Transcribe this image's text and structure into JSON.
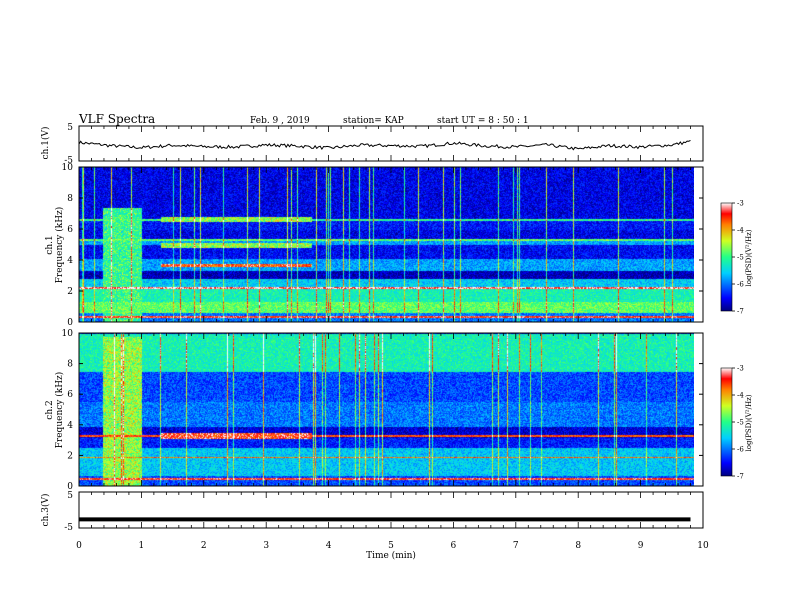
{
  "header": {
    "title": "VLF Spectra",
    "date": "Feb. 9  , 2019",
    "station": "station= KAP",
    "start": "start  UT =   8  : 50 : 1"
  },
  "chart_data": [
    {
      "type": "line",
      "ylabel": "ch.1(V)",
      "ylim": [
        -5,
        5
      ],
      "yticks": [
        "5",
        "-5"
      ],
      "xlim": [
        0,
        10
      ],
      "series_color": "#000000",
      "x_sample_min": [
        0,
        0.5,
        1,
        1.5,
        2,
        2.5,
        3,
        3.5,
        4,
        4.5,
        5,
        5.5,
        6,
        6.5,
        7,
        7.5,
        8,
        8.5,
        9,
        9.5,
        9.8
      ],
      "y_volts": [
        0.3,
        -0.6,
        -1.2,
        -0.5,
        -0.9,
        -1.0,
        -0.4,
        -0.7,
        -1.3,
        -0.5,
        -0.6,
        -0.8,
        0.1,
        -0.7,
        -1.0,
        -0.4,
        -1.6,
        -0.6,
        -1.0,
        -0.4,
        0.6
      ]
    },
    {
      "type": "heatmap",
      "ylabel": "ch.1\nFrequency (kHz)",
      "ylim": [
        0,
        10
      ],
      "yticks": [
        "0",
        "2",
        "4",
        "6",
        "8",
        "10"
      ],
      "xlim": [
        0,
        10
      ],
      "colorbar": {
        "label": "log(PSD)(V²/Hz)",
        "range": [
          -7,
          -3
        ],
        "ticks": [
          "-3",
          "-4",
          "-5",
          "-6",
          "-7"
        ]
      },
      "bands_khz": [
        {
          "f0": 0.0,
          "f1": 0.6,
          "level": 0.25
        },
        {
          "f0": 0.6,
          "f1": 1.3,
          "level": 0.55
        },
        {
          "f0": 1.3,
          "f1": 2.2,
          "level": 0.45
        },
        {
          "f0": 2.2,
          "f1": 2.3,
          "level": 0.85
        },
        {
          "f0": 2.3,
          "f1": 2.8,
          "level": 0.35
        },
        {
          "f0": 2.8,
          "f1": 3.3,
          "level": 0.05
        },
        {
          "f0": 3.3,
          "f1": 4.1,
          "level": 0.3
        },
        {
          "f0": 4.1,
          "f1": 5.0,
          "level": 0.12
        },
        {
          "f0": 5.0,
          "f1": 5.4,
          "level": 0.3
        },
        {
          "f0": 5.4,
          "f1": 6.0,
          "level": 0.1
        },
        {
          "f0": 6.0,
          "f1": 6.7,
          "level": 0.14
        },
        {
          "f0": 6.7,
          "f1": 10.0,
          "level": 0.1
        }
      ],
      "lines_khz": [
        {
          "f": 0.35,
          "level": 0.9
        },
        {
          "f": 2.2,
          "level": 0.95
        },
        {
          "f": 5.3,
          "level": 0.55
        },
        {
          "f": 6.6,
          "level": 0.5
        }
      ],
      "bursts_min": [
        {
          "t0": 0.38,
          "t1": 1.0,
          "f0": 0.0,
          "f1": 7.4,
          "level": 0.5
        },
        {
          "t0": 1.3,
          "t1": 3.72,
          "f0": 3.6,
          "f1": 3.8,
          "level": 0.85
        },
        {
          "t0": 1.3,
          "t1": 3.72,
          "f0": 4.8,
          "f1": 5.1,
          "level": 0.6
        },
        {
          "t0": 1.3,
          "t1": 3.72,
          "f0": 6.5,
          "f1": 6.8,
          "level": 0.6
        }
      ]
    },
    {
      "type": "heatmap",
      "ylabel": "ch.2\nFrequency (kHz)",
      "ylim": [
        0,
        10
      ],
      "yticks": [
        "0",
        "2",
        "4",
        "6",
        "8",
        "10"
      ],
      "xlim": [
        0,
        10
      ],
      "colorbar": {
        "label": "log(PSD)(V²/Hz)",
        "range": [
          -7,
          -3
        ],
        "ticks": [
          "-3",
          "-4",
          "-5",
          "-6",
          "-7"
        ]
      },
      "bands_khz": [
        {
          "f0": 0.0,
          "f1": 0.7,
          "level": 0.2
        },
        {
          "f0": 0.7,
          "f1": 2.5,
          "level": 0.35
        },
        {
          "f0": 2.5,
          "f1": 3.2,
          "level": 0.15
        },
        {
          "f0": 3.2,
          "f1": 3.9,
          "level": 0.08
        },
        {
          "f0": 3.9,
          "f1": 5.5,
          "level": 0.25
        },
        {
          "f0": 5.5,
          "f1": 7.5,
          "level": 0.2
        },
        {
          "f0": 7.5,
          "f1": 10.0,
          "level": 0.45
        }
      ],
      "lines_khz": [
        {
          "f": 0.5,
          "level": 0.9
        },
        {
          "f": 1.9,
          "level": 0.8
        },
        {
          "f": 3.3,
          "level": 0.85
        }
      ],
      "bursts_min": [
        {
          "t0": 0.38,
          "t1": 1.0,
          "f0": 0.0,
          "f1": 9.8,
          "level": 0.6
        },
        {
          "t0": 1.3,
          "t1": 3.72,
          "f0": 3.1,
          "f1": 3.5,
          "level": 0.9
        }
      ]
    },
    {
      "type": "line",
      "ylabel": "ch.3(V)",
      "ylim": [
        -5,
        5
      ],
      "yticks": [
        "5",
        "-5"
      ],
      "xlim": [
        0,
        10
      ],
      "xlabel": "Time (min)",
      "xticks": [
        "0",
        "1",
        "2",
        "3",
        "4",
        "5",
        "6",
        "7",
        "8",
        "9",
        "10"
      ],
      "series_color": "#000000",
      "x_sample_min": [
        0,
        9.8
      ],
      "y_volts": [
        -2.6,
        -2.6
      ]
    }
  ]
}
